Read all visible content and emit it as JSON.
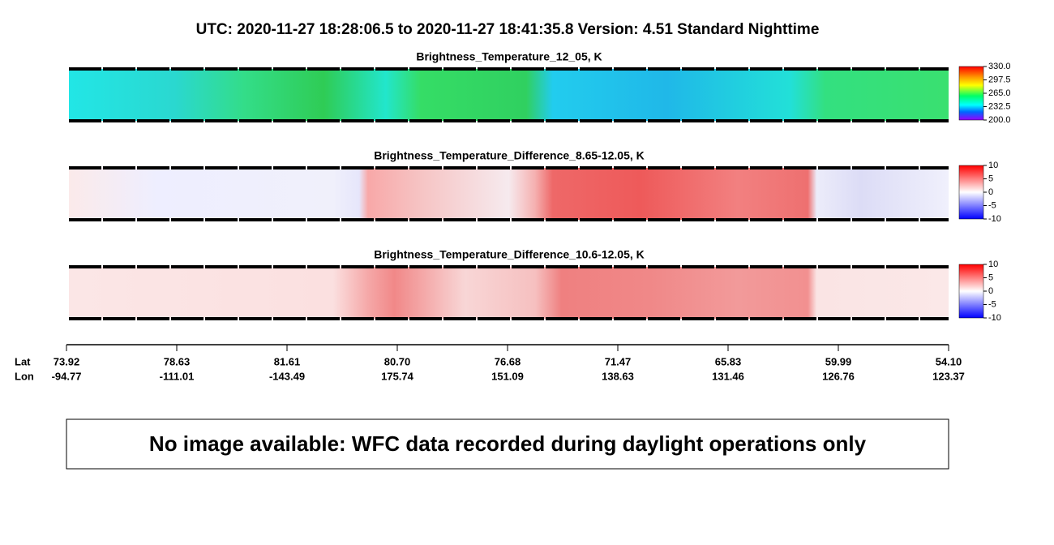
{
  "header": {
    "title": "UTC:  2020-11-27   18:28:06.5  to  2020-11-27   18:41:35.8    Version: 4.51  Standard Nighttime"
  },
  "panels": [
    {
      "title": "Brightness_Temperature_12_05, K",
      "colorbar_labels": [
        "330.0",
        "297.5",
        "265.0",
        "232.5",
        "200.0"
      ]
    },
    {
      "title": "Brightness_Temperature_Difference_8.65-12.05, K",
      "colorbar_labels": [
        "10",
        "5",
        "0",
        "-5",
        "-10"
      ]
    },
    {
      "title": "Brightness_Temperature_Difference_10.6-12.05, K",
      "colorbar_labels": [
        "10",
        "5",
        "0",
        "-5",
        "-10"
      ]
    }
  ],
  "axis": {
    "lat_label": "Lat",
    "lon_label": "Lon",
    "lat": [
      "73.92",
      "78.63",
      "81.61",
      "80.70",
      "76.68",
      "71.47",
      "65.83",
      "59.99",
      "54.10"
    ],
    "lon": [
      "-94.77",
      "-111.01",
      "-143.49",
      "175.74",
      "151.09",
      "138.63",
      "131.46",
      "126.76",
      "123.37"
    ]
  },
  "message": "No image available: WFC data recorded during daylight operations only"
}
